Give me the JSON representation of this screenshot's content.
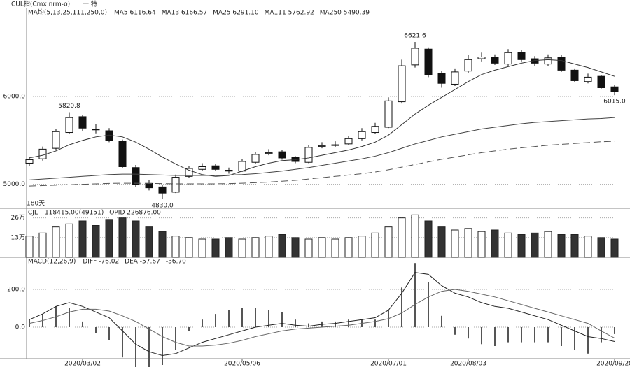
{
  "title": "CUL指(Cmx nrm-o)",
  "period": "一 特",
  "chart_data": [
    {
      "type": "candlestick",
      "indicator": "MA均(5,13,25,111,250,0)",
      "readouts": [
        "MA5 6116.64",
        "MA13 6166.57",
        "MA25 6291.10",
        "MA111 5762.92",
        "MA250 5490.39"
      ],
      "range_label": "180天",
      "open": [
        5240,
        5290,
        5410,
        5590,
        5770,
        5630,
        5610,
        5490,
        5190,
        5010,
        4970,
        4910,
        5090,
        5170,
        5210,
        5160,
        5150,
        5250,
        5350,
        5370,
        5310,
        5250,
        5430,
        5450,
        5460,
        5520,
        5590,
        5650,
        5940,
        6360,
        6540,
        6260,
        6140,
        6290,
        6430,
        6450,
        6370,
        6500,
        6430,
        6370,
        6450,
        6300,
        6170,
        6230,
        6110
      ],
      "high": [
        5310,
        5430,
        5630,
        5820.8,
        5790,
        5690,
        5640,
        5510,
        5220,
        5050,
        4990,
        5110,
        5210,
        5240,
        5230,
        5190,
        5290,
        5370,
        5400,
        5390,
        5320,
        5450,
        5480,
        5490,
        5550,
        5640,
        5700,
        5990,
        6420,
        6621.6,
        6560,
        6290,
        6320,
        6470,
        6500,
        6480,
        6540,
        6530,
        6460,
        6480,
        6470,
        6320,
        6260,
        6240,
        6130
      ],
      "low": [
        5210,
        5270,
        5390,
        5570,
        5610,
        5580,
        5480,
        5180,
        4970,
        4930,
        4830,
        4900,
        5070,
        5150,
        5150,
        5120,
        5140,
        5230,
        5330,
        5280,
        5240,
        5240,
        5410,
        5420,
        5450,
        5500,
        5570,
        5640,
        5920,
        6330,
        6220,
        6100,
        6120,
        6270,
        6400,
        6360,
        6350,
        6400,
        6350,
        6350,
        6280,
        6160,
        6150,
        6090,
        6015
      ],
      "close": [
        5280,
        5400,
        5600,
        5760,
        5640,
        5620,
        5500,
        5200,
        5000,
        4960,
        4900,
        5080,
        5180,
        5200,
        5170,
        5150,
        5260,
        5340,
        5360,
        5300,
        5260,
        5420,
        5440,
        5450,
        5520,
        5600,
        5660,
        5950,
        6350,
        6550,
        6250,
        6150,
        6280,
        6420,
        6450,
        6380,
        6500,
        6420,
        6380,
        6440,
        6300,
        6180,
        6220,
        6100,
        6060
      ],
      "annotations": [
        "5820.8",
        "4830.0",
        "6621.6",
        "6015.0"
      ],
      "series": [
        {
          "color": "#333",
          "values": [
            5300,
            5330,
            5380,
            5450,
            5500,
            5540,
            5560,
            5540,
            5480,
            5400,
            5310,
            5230,
            5160,
            5110,
            5090,
            5100,
            5150,
            5200,
            5240,
            5270,
            5280,
            5300,
            5330,
            5360,
            5390,
            5430,
            5480,
            5560,
            5680,
            5800,
            5900,
            5990,
            6080,
            6170,
            6250,
            6300,
            6340,
            6380,
            6410,
            6420,
            6410,
            6370,
            6330,
            6280,
            6230
          ]
        },
        {
          "color": "#444",
          "values": [
            5050,
            5060,
            5070,
            5080,
            5090,
            5100,
            5110,
            5115,
            5115,
            5110,
            5105,
            5100,
            5100,
            5100,
            5100,
            5105,
            5110,
            5120,
            5135,
            5150,
            5170,
            5190,
            5215,
            5240,
            5265,
            5290,
            5320,
            5360,
            5410,
            5460,
            5500,
            5540,
            5570,
            5600,
            5630,
            5650,
            5670,
            5690,
            5705,
            5715,
            5725,
            5735,
            5745,
            5750,
            5760
          ]
        },
        {
          "color": "#555",
          "dashed": true,
          "values": [
            4980,
            4985,
            4990,
            4995,
            5000,
            5005,
            5010,
            5012,
            5012,
            5010,
            5008,
            5005,
            5005,
            5005,
            5005,
            5008,
            5012,
            5018,
            5025,
            5035,
            5045,
            5060,
            5075,
            5090,
            5105,
            5120,
            5140,
            5165,
            5195,
            5225,
            5255,
            5285,
            5310,
            5335,
            5360,
            5380,
            5400,
            5415,
            5430,
            5445,
            5455,
            5465,
            5475,
            5485,
            5490
          ]
        }
      ],
      "ylim": [
        4750,
        6980
      ],
      "yticks": [
        {
          "value": 6000,
          "label": "6000.0"
        },
        {
          "value": 5000,
          "label": "5000.0"
        }
      ]
    },
    {
      "type": "bar",
      "indicator": "CJL",
      "readouts": [
        "118415.00(49151)",
        "OPID 226876.00"
      ],
      "values": [
        14,
        16,
        20,
        22,
        24,
        21,
        25,
        26,
        24,
        20,
        17,
        14,
        13,
        12,
        12,
        13,
        12,
        13,
        14,
        15,
        13,
        12,
        13,
        12,
        13,
        14,
        16,
        20,
        26,
        28,
        24,
        20,
        18,
        19,
        17,
        18,
        16,
        15,
        16,
        17,
        15,
        15,
        14,
        13,
        12
      ],
      "ylim": [
        0,
        30
      ],
      "yticks": [
        {
          "value": 26,
          "label": "26万"
        },
        {
          "value": 13,
          "label": "13万"
        }
      ]
    },
    {
      "type": "macd",
      "indicator": "MACD(12,26,9)",
      "readouts": [
        "DIFF -76.02",
        "DEA -57.67",
        "-36.70"
      ],
      "categories": [
        null,
        null,
        null,
        null,
        "2020/03/02",
        null,
        null,
        null,
        null,
        null,
        null,
        null,
        null,
        null,
        null,
        null,
        "2020/05/06",
        null,
        null,
        null,
        null,
        null,
        null,
        null,
        null,
        null,
        null,
        "2020/07/01",
        null,
        null,
        null,
        null,
        null,
        "2020/08/03",
        null,
        null,
        null,
        null,
        null,
        null,
        null,
        null,
        null,
        null,
        "2020/09/28"
      ],
      "bars": [
        40,
        70,
        110,
        100,
        30,
        -30,
        -70,
        -160,
        -240,
        -240,
        -200,
        -120,
        -20,
        40,
        70,
        90,
        100,
        100,
        90,
        80,
        40,
        20,
        30,
        30,
        40,
        40,
        40,
        90,
        210,
        340,
        240,
        60,
        -40,
        -60,
        -90,
        -100,
        -80,
        -80,
        -80,
        -80,
        -100,
        -120,
        -140,
        -80,
        -36.7
      ],
      "series": [
        {
          "color": "#222",
          "values": [
            40,
            70,
            110,
            130,
            110,
            80,
            50,
            -20,
            -90,
            -130,
            -150,
            -140,
            -110,
            -80,
            -60,
            -40,
            -20,
            0,
            10,
            20,
            10,
            5,
            15,
            20,
            30,
            40,
            50,
            90,
            180,
            290,
            280,
            220,
            180,
            160,
            130,
            110,
            100,
            80,
            60,
            40,
            10,
            -20,
            -50,
            -60,
            -76.02
          ]
        },
        {
          "color": "#666",
          "values": [
            20,
            35,
            55,
            80,
            95,
            95,
            85,
            60,
            30,
            -10,
            -50,
            -80,
            -100,
            -100,
            -95,
            -85,
            -70,
            -50,
            -35,
            -20,
            -10,
            -5,
            0,
            5,
            10,
            20,
            30,
            45,
            75,
            120,
            160,
            190,
            200,
            190,
            175,
            160,
            140,
            120,
            100,
            80,
            60,
            40,
            20,
            -20,
            -57.67
          ]
        }
      ],
      "ylim": [
        -163,
        363
      ],
      "yticks": [
        {
          "value": 200,
          "label": "200.0"
        },
        {
          "value": 0,
          "label": "0.0"
        }
      ]
    }
  ]
}
